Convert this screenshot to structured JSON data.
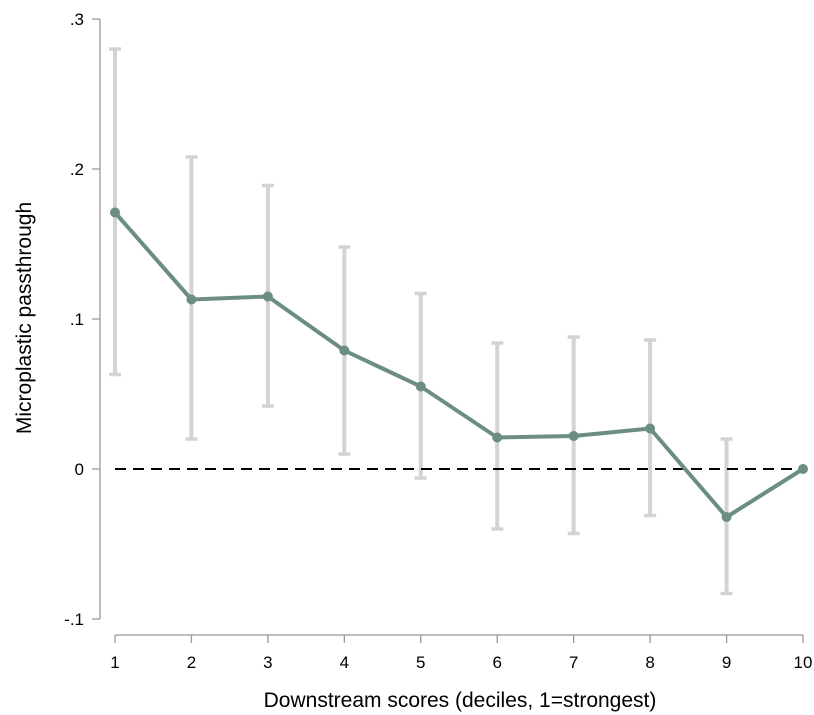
{
  "chart_data": {
    "type": "line",
    "xlabel": "Downstream scores (deciles, 1=strongest)",
    "ylabel": "Microplastic passthrough",
    "x": [
      1,
      2,
      3,
      4,
      5,
      6,
      7,
      8,
      9,
      10
    ],
    "x_tick_labels": [
      "1",
      "2",
      "3",
      "4",
      "5",
      "6",
      "7",
      "8",
      "9",
      "10"
    ],
    "y_ticks": [
      -0.1,
      0,
      0.1,
      0.2,
      0.3
    ],
    "y_tick_labels": [
      "-.1",
      "0",
      ".1",
      ".2",
      ".3"
    ],
    "ylim": [
      -0.1,
      0.3
    ],
    "xlim": [
      1,
      10
    ],
    "reference_line": {
      "y": 0,
      "style": "dashed"
    },
    "series": [
      {
        "values": [
          0.171,
          0.113,
          0.115,
          0.079,
          0.055,
          0.021,
          0.022,
          0.027,
          -0.032,
          0.0
        ],
        "ci_lower": [
          0.063,
          0.02,
          0.042,
          0.01,
          -0.006,
          -0.04,
          -0.043,
          -0.031,
          -0.083,
          null
        ],
        "ci_upper": [
          0.28,
          0.208,
          0.189,
          0.148,
          0.117,
          0.084,
          0.088,
          0.086,
          0.02,
          null
        ]
      }
    ],
    "colors": {
      "line": "#6b8e80",
      "error_bar": "#d3d3d3",
      "reference": "#000000",
      "axis": "#999999"
    },
    "grid": false
  }
}
